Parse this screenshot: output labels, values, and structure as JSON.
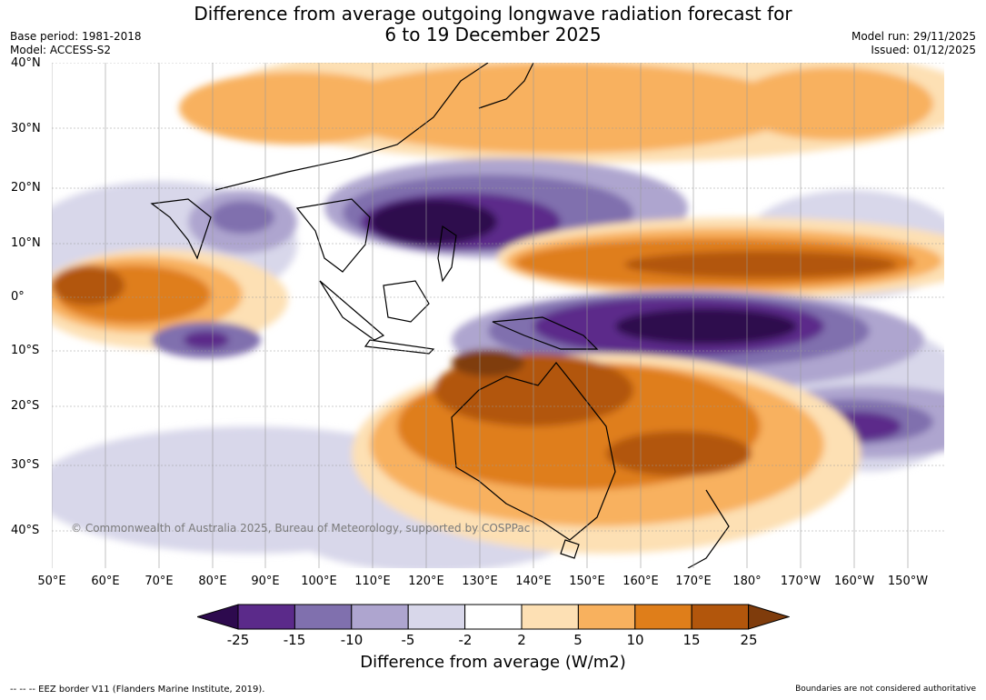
{
  "header": {
    "title_line1": "Difference from average outgoing longwave radiation forecast for",
    "title_line2": "6 to 19 December 2025",
    "base_period": "Base period: 1981-2018",
    "model": "Model: ACCESS-S2",
    "model_run": "Model run: 29/11/2025",
    "issued": "Issued: 01/12/2025"
  },
  "map": {
    "lat_labels": [
      "40°N",
      "30°N",
      "20°N",
      "10°N",
      "0°",
      "10°S",
      "20°S",
      "30°S",
      "40°S"
    ],
    "lon_labels": [
      "50°E",
      "60°E",
      "70°E",
      "80°E",
      "90°E",
      "100°E",
      "110°E",
      "120°E",
      "130°E",
      "140°E",
      "150°E",
      "160°E",
      "170°E",
      "180°",
      "170°W",
      "160°W",
      "150°W"
    ],
    "copyright": "© Commonwealth of Australia 2025, Bureau of Meteorology, supported by COSPPac"
  },
  "colorbar": {
    "ticks": [
      "-25",
      "-15",
      "-10",
      "-5",
      "-2",
      "2",
      "5",
      "10",
      "15",
      "25"
    ],
    "colors": [
      "#2d0a4e",
      "#5b2a8a",
      "#8070ae",
      "#aea5cf",
      "#d8d7ea",
      "#ffffff",
      "#fde0b4",
      "#f8b15e",
      "#df7e1a",
      "#b2560c",
      "#7f3c0c"
    ],
    "label": "Difference from average (W/m2)"
  },
  "footer": {
    "eez": "--  --  -- EEZ border V11 (Flanders Marine Institute, 2019).",
    "disclaimer": "Boundaries are not considered authoritative"
  }
}
